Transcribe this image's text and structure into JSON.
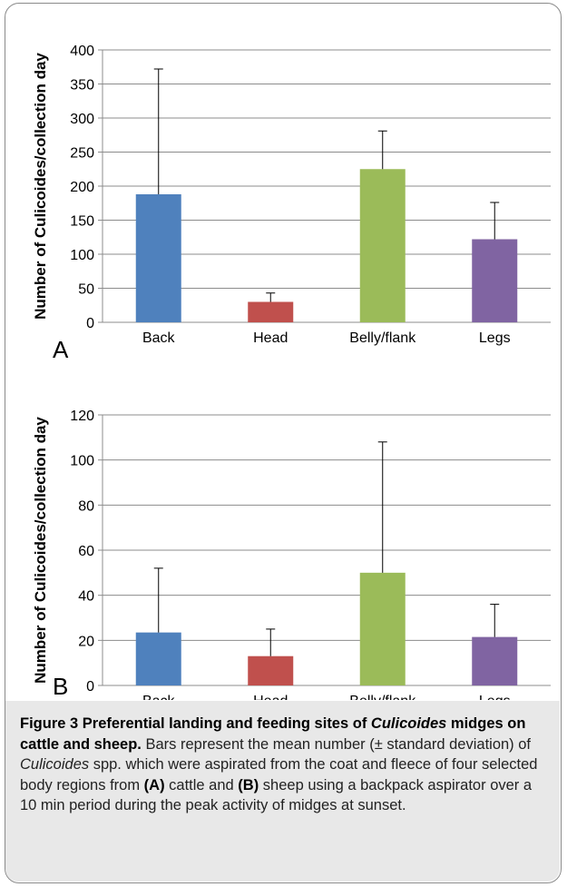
{
  "chart_data": [
    {
      "panel": "A",
      "type": "bar",
      "categories": [
        "Back",
        "Head",
        "Belly/flank",
        "Legs"
      ],
      "values": [
        188,
        30,
        225,
        122
      ],
      "error_upper": [
        372,
        43,
        281,
        176
      ],
      "colors": [
        "#4f81bd",
        "#c0504d",
        "#9bbb59",
        "#8064a2"
      ],
      "ylabel": "Number of Culicoides/collection day",
      "ylim": [
        0,
        400
      ],
      "yticks": [
        0,
        50,
        100,
        150,
        200,
        250,
        300,
        350,
        400
      ],
      "grid": true
    },
    {
      "panel": "B",
      "type": "bar",
      "categories": [
        "Back",
        "Head",
        "Belly/flank",
        "Legs"
      ],
      "values": [
        23.5,
        13,
        50,
        21.5
      ],
      "error_upper": [
        52,
        25,
        108,
        36
      ],
      "colors": [
        "#4f81bd",
        "#c0504d",
        "#9bbb59",
        "#8064a2"
      ],
      "ylabel": "Number of Culicoides/collection day",
      "ylim": [
        0,
        120
      ],
      "yticks": [
        0,
        20,
        40,
        60,
        80,
        100,
        120
      ],
      "grid": true
    }
  ],
  "caption": {
    "title_parts": [
      "Figure 3 Preferential landing and feeding sites of ",
      "Culicoides",
      " midges on cattle and sheep."
    ],
    "body_parts": [
      {
        "t": " Bars represent the mean number (± standard deviation) of ",
        "s": "n"
      },
      {
        "t": "Culicoides",
        "s": "i"
      },
      {
        "t": " spp. which were aspirated from the coat and fleece of four selected body regions from ",
        "s": "n"
      },
      {
        "t": "(A)",
        "s": "b"
      },
      {
        "t": " cattle and ",
        "s": "n"
      },
      {
        "t": "(B)",
        "s": "b"
      },
      {
        "t": " sheep using a backpack aspirator over a 10 min period during the peak activity of midges at sunset.",
        "s": "n"
      }
    ]
  }
}
